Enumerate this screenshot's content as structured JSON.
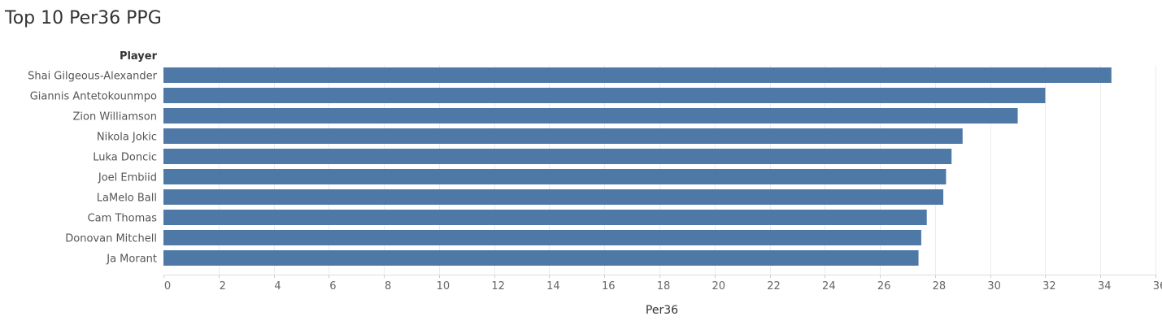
{
  "chart_data": {
    "type": "bar",
    "orientation": "horizontal",
    "title": "Top 10 Per36 PPG",
    "category_header": "Player",
    "xlabel": "Per36",
    "categories": [
      "Shai Gilgeous-Alexander",
      "Giannis Antetokounmpo",
      "Zion Williamson",
      "Nikola Jokic",
      "Luka Doncic",
      "Joel Embiid",
      "LaMelo Ball",
      "Cam Thomas",
      "Donovan Mitchell",
      "Ja Morant"
    ],
    "values": [
      34.4,
      32.0,
      31.0,
      29.0,
      28.6,
      28.4,
      28.3,
      27.7,
      27.5,
      27.4
    ],
    "xlim": [
      0,
      36
    ],
    "xticks": [
      0,
      2,
      4,
      6,
      8,
      10,
      12,
      14,
      16,
      18,
      20,
      22,
      24,
      26,
      28,
      30,
      32,
      34,
      36
    ],
    "grid": true,
    "bar_color": "#4e79a7"
  }
}
